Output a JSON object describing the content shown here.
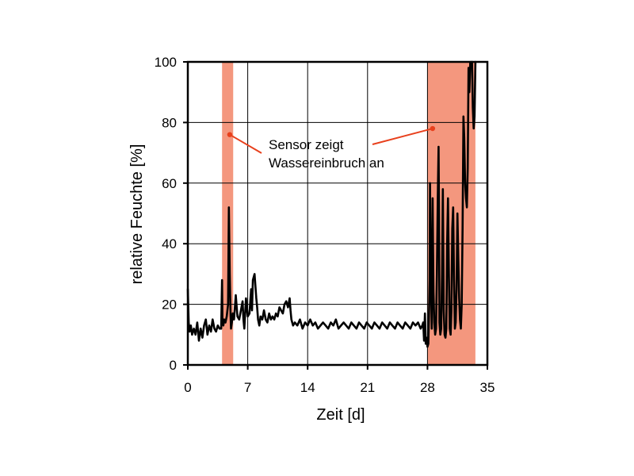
{
  "chart_data": {
    "type": "line",
    "title": "",
    "xlabel": "Zeit [d]",
    "ylabel": "relative Feuchte [%]",
    "xlim": [
      0,
      35
    ],
    "ylim": [
      0,
      100
    ],
    "xticks": [
      0,
      7,
      14,
      21,
      28,
      35
    ],
    "yticks": [
      0,
      20,
      40,
      60,
      80,
      100
    ],
    "grid": true,
    "colors": {
      "line": "#000000",
      "highlight": "#f4977e",
      "annotation": "#e8401c",
      "grid": "#000000"
    },
    "highlight_regions": [
      {
        "x_start": 4.0,
        "x_end": 5.3
      },
      {
        "x_start": 28.0,
        "x_end": 33.6
      }
    ],
    "annotation": {
      "lines": [
        "Sensor zeigt",
        "Wassereinbruch an"
      ],
      "targets": [
        {
          "x": 4.9,
          "y": 76
        },
        {
          "x": 28.6,
          "y": 78
        }
      ]
    },
    "series": [
      {
        "name": "relative Feuchte",
        "x": [
          0,
          0.1,
          0.2,
          0.35,
          0.5,
          0.7,
          0.9,
          1.1,
          1.3,
          1.5,
          1.7,
          1.9,
          2.1,
          2.3,
          2.5,
          2.7,
          2.9,
          3.1,
          3.3,
          3.5,
          3.7,
          3.9,
          4.0,
          4.05,
          4.15,
          4.25,
          4.4,
          4.55,
          4.7,
          4.8,
          4.9,
          5.0,
          5.05,
          5.15,
          5.25,
          5.4,
          5.6,
          5.8,
          6.0,
          6.2,
          6.4,
          6.5,
          6.6,
          6.8,
          7.0,
          7.2,
          7.4,
          7.5,
          7.6,
          7.8,
          8.0,
          8.1,
          8.2,
          8.35,
          8.5,
          8.7,
          8.9,
          9.1,
          9.3,
          9.5,
          9.7,
          9.9,
          10.1,
          10.3,
          10.5,
          10.7,
          10.9,
          11.1,
          11.3,
          11.5,
          11.7,
          11.9,
          12.0,
          12.1,
          12.3,
          12.5,
          12.8,
          13.1,
          13.4,
          13.7,
          14.0,
          14.3,
          14.6,
          14.9,
          15.2,
          15.5,
          15.8,
          16.1,
          16.4,
          16.7,
          17.0,
          17.3,
          17.6,
          17.9,
          18.2,
          18.5,
          18.8,
          19.1,
          19.4,
          19.7,
          20.0,
          20.3,
          20.6,
          20.9,
          21.2,
          21.5,
          21.8,
          22.1,
          22.4,
          22.7,
          23.0,
          23.3,
          23.6,
          23.9,
          24.2,
          24.5,
          24.8,
          25.1,
          25.4,
          25.7,
          26.0,
          26.3,
          26.6,
          26.9,
          27.2,
          27.4,
          27.5,
          27.6,
          27.7,
          27.8,
          27.9,
          28.0,
          28.1,
          28.2,
          28.25,
          28.3,
          28.35,
          28.4,
          28.45,
          28.5,
          28.55,
          28.6,
          28.65,
          28.7,
          28.8,
          28.9,
          29.0,
          29.1,
          29.2,
          29.3,
          29.35,
          29.4,
          29.5,
          29.6,
          29.7,
          29.8,
          29.9,
          30.0,
          30.1,
          30.2,
          30.3,
          30.4,
          30.5,
          30.6,
          30.7,
          30.8,
          30.9,
          31.0,
          31.1,
          31.2,
          31.3,
          31.4,
          31.5,
          31.6,
          31.7,
          31.8,
          31.9,
          32.0,
          32.1,
          32.2,
          32.3,
          32.4,
          32.5,
          32.6,
          32.7,
          32.8,
          32.9,
          33.0,
          33.1,
          33.2,
          33.3,
          33.4,
          33.5,
          33.6
        ],
        "y": [
          25,
          14,
          11,
          13,
          10,
          12,
          10,
          14,
          8,
          12,
          9,
          13,
          15,
          10,
          13,
          11,
          15,
          12,
          11,
          13,
          12,
          12,
          28,
          14,
          13,
          15,
          14,
          16,
          20,
          52,
          30,
          16,
          12,
          14,
          17,
          15,
          23,
          16,
          15,
          18,
          21,
          15,
          12,
          22,
          16,
          17,
          25,
          18,
          28,
          30,
          22,
          19,
          15,
          13,
          16,
          15,
          18,
          15,
          14,
          17,
          15,
          16,
          15,
          17,
          16,
          19,
          18,
          17,
          20,
          21,
          19,
          22,
          18,
          15,
          13,
          14,
          13,
          15,
          12,
          14,
          13,
          15,
          13,
          14,
          12,
          13,
          14,
          13,
          12,
          14,
          13,
          15,
          12,
          13,
          14,
          13,
          12,
          14,
          13,
          12,
          14,
          13,
          12,
          14,
          13,
          12,
          14,
          13,
          12,
          14,
          13,
          12,
          14,
          13,
          12,
          14,
          13,
          12,
          14,
          13,
          12,
          14,
          13,
          14,
          12,
          13,
          14,
          8,
          17,
          7,
          9,
          6,
          7,
          20,
          28,
          60,
          38,
          30,
          20,
          12,
          33,
          55,
          40,
          24,
          14,
          10,
          12,
          30,
          55,
          72,
          48,
          14,
          10,
          12,
          30,
          58,
          18,
          10,
          9,
          12,
          40,
          55,
          30,
          12,
          10,
          18,
          45,
          52,
          28,
          12,
          14,
          25,
          50,
          35,
          22,
          15,
          12,
          20,
          45,
          82,
          75,
          60,
          55,
          52,
          65,
          98,
          90,
          100,
          99,
          100,
          85,
          78,
          82,
          100
        ]
      }
    ]
  }
}
